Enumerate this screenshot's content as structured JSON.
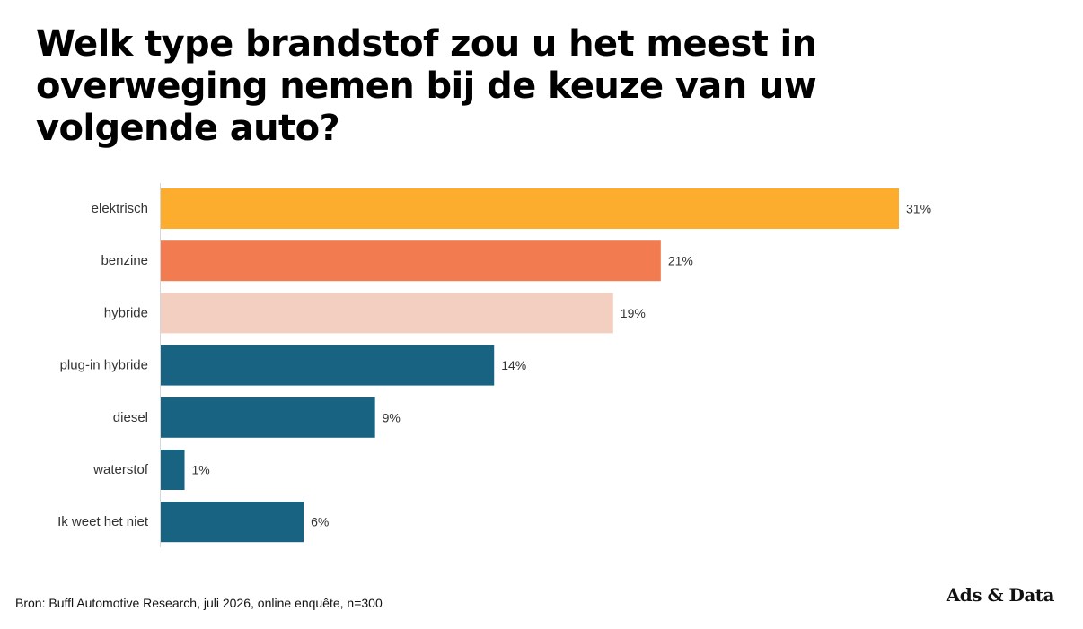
{
  "title": "Welk type brandstof zou u het meest in overweging nemen bij de keuze van uw volgende auto?",
  "source": "Bron: Buffl Automotive Research, juli 2026, online enquête, n=300",
  "brand": "Ads & Data",
  "chart_data": {
    "type": "bar",
    "orientation": "horizontal",
    "title": "Welk type brandstof zou u het meest in overweging nemen bij de keuze van uw volgende auto?",
    "categories": [
      "elektrisch",
      "benzine",
      "hybride",
      "plug-in hybride",
      "diesel",
      "waterstof",
      "Ik weet het niet"
    ],
    "values": [
      31,
      21,
      19,
      14,
      9,
      1,
      6
    ],
    "value_labels": [
      "31%",
      "21%",
      "19%",
      "14%",
      "9%",
      "1%",
      "6%"
    ],
    "colors": [
      "#FDAD2D",
      "#F27B4F",
      "#F2CFC0",
      "#186381",
      "#186381",
      "#186381",
      "#186381"
    ],
    "unit": "%",
    "xlim": [
      0,
      31
    ],
    "grid": false,
    "legend": "none"
  }
}
